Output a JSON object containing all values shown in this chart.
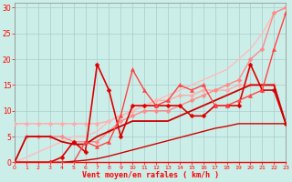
{
  "xlabel": "Vent moyen/en rafales ( km/h )",
  "bg_color": "#cceee8",
  "grid_color": "#aacccc",
  "xlim": [
    0,
    23
  ],
  "ylim": [
    0,
    31
  ],
  "xticks": [
    0,
    1,
    2,
    3,
    4,
    5,
    6,
    7,
    8,
    9,
    10,
    11,
    12,
    13,
    14,
    15,
    16,
    17,
    18,
    19,
    20,
    21,
    22,
    23
  ],
  "yticks": [
    0,
    5,
    10,
    15,
    20,
    25,
    30
  ],
  "series": [
    {
      "x": [
        0,
        1,
        2,
        3,
        4,
        5,
        6,
        7,
        8,
        9,
        10,
        11,
        12,
        13,
        14,
        15,
        16,
        17,
        18,
        19,
        20,
        21,
        22
      ],
      "y": [
        7.5,
        7.5,
        7.5,
        7.5,
        7.5,
        7.5,
        7.5,
        7.5,
        8,
        9,
        10,
        11,
        12,
        12,
        13,
        13,
        14,
        14,
        14,
        15,
        15,
        15,
        15
      ],
      "color": "#ffaaaa",
      "lw": 1.0,
      "marker": "D",
      "ms": 2.5
    },
    {
      "x": [
        0,
        1,
        2,
        3,
        4,
        5,
        6,
        7,
        8,
        9,
        10,
        11,
        12,
        13,
        14,
        15,
        16,
        17,
        18,
        19,
        20,
        21,
        22,
        23
      ],
      "y": [
        0,
        1,
        2,
        3,
        4,
        5,
        5,
        6,
        8,
        9,
        10,
        11,
        12,
        13,
        14,
        15,
        16,
        17,
        18,
        20,
        22,
        25,
        29,
        30
      ],
      "color": "#ffbbbb",
      "lw": 1.0,
      "marker": null,
      "ms": 0
    },
    {
      "x": [
        1,
        2,
        3,
        4,
        5,
        6,
        7,
        8,
        9,
        10,
        11,
        12,
        13,
        14,
        15,
        16,
        17,
        18,
        19,
        20,
        21,
        22,
        23
      ],
      "y": [
        5,
        5,
        5,
        5,
        4,
        4,
        4,
        6,
        8,
        9,
        10,
        10,
        10,
        11,
        12,
        13,
        14,
        15,
        16,
        20,
        22,
        29,
        30
      ],
      "color": "#ff8888",
      "lw": 1.0,
      "marker": "D",
      "ms": 2.5
    },
    {
      "x": [
        0,
        3,
        4,
        5,
        6,
        7,
        8,
        9,
        10,
        11,
        12,
        13,
        14,
        15,
        16,
        17,
        18,
        19,
        20,
        21,
        22,
        23
      ],
      "y": [
        0,
        0,
        1,
        4,
        2,
        19,
        14,
        5,
        11,
        11,
        11,
        11,
        11,
        9,
        9,
        11,
        11,
        11,
        19,
        14,
        14,
        7.5
      ],
      "color": "#dd0000",
      "lw": 1.2,
      "marker": "D",
      "ms": 2.5
    },
    {
      "x": [
        0,
        1,
        2,
        3,
        4,
        5,
        6,
        7,
        8,
        9,
        10,
        11,
        12,
        13,
        14,
        15,
        16,
        17,
        18,
        19,
        20,
        21,
        22,
        23
      ],
      "y": [
        0,
        5,
        5,
        5,
        4,
        3.5,
        3.5,
        5,
        6,
        7,
        8,
        8,
        8,
        8,
        9,
        10,
        11,
        12,
        13,
        14,
        15,
        15,
        15,
        7.5
      ],
      "color": "#cc0000",
      "lw": 1.3,
      "marker": null,
      "ms": 0
    },
    {
      "x": [
        0,
        3,
        4,
        5,
        6,
        7,
        8,
        9,
        10,
        11,
        12,
        13,
        14,
        15,
        16,
        17,
        18,
        19,
        20,
        21,
        22,
        23
      ],
      "y": [
        0,
        0,
        0,
        0,
        4,
        3,
        4,
        9,
        18,
        14,
        11,
        12,
        15,
        14,
        15,
        11,
        11,
        12,
        13,
        14,
        22,
        29
      ],
      "color": "#ff4444",
      "lw": 1.0,
      "marker": "^",
      "ms": 3.0
    },
    {
      "x": [
        0,
        1,
        2,
        3,
        4,
        5,
        6,
        7,
        8,
        9,
        10,
        11,
        12,
        13,
        14,
        15,
        16,
        17,
        18,
        19,
        20,
        21,
        22,
        23
      ],
      "y": [
        0,
        0,
        0,
        0,
        0,
        0.2,
        0.4,
        0.7,
        1.2,
        1.8,
        2.4,
        3.0,
        3.6,
        4.2,
        4.8,
        5.4,
        6.0,
        6.6,
        7.0,
        7.5,
        7.5,
        7.5,
        7.5,
        7.5
      ],
      "color": "#cc0000",
      "lw": 1.0,
      "marker": null,
      "ms": 0
    }
  ]
}
